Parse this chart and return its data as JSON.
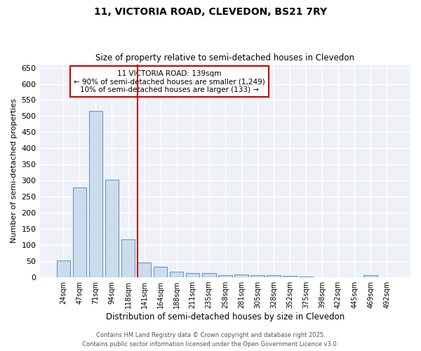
{
  "title_line1": "11, VICTORIA ROAD, CLEVEDON, BS21 7RY",
  "title_line2": "Size of property relative to semi-detached houses in Clevedon",
  "xlabel": "Distribution of semi-detached houses by size in Clevedon",
  "ylabel": "Number of semi-detached properties",
  "bar_labels": [
    "24sqm",
    "47sqm",
    "71sqm",
    "94sqm",
    "118sqm",
    "141sqm",
    "164sqm",
    "188sqm",
    "211sqm",
    "235sqm",
    "258sqm",
    "281sqm",
    "305sqm",
    "328sqm",
    "352sqm",
    "375sqm",
    "398sqm",
    "422sqm",
    "445sqm",
    "469sqm",
    "492sqm"
  ],
  "bar_values": [
    52,
    278,
    516,
    302,
    118,
    46,
    31,
    17,
    12,
    12,
    5,
    7,
    6,
    5,
    3,
    2,
    0,
    0,
    0,
    5,
    0
  ],
  "bar_color": "#ccdcec",
  "bar_edge_color": "#6699cc",
  "vline_x_index": 5,
  "vline_color": "#cc0000",
  "annotation_title": "11 VICTORIA ROAD: 139sqm",
  "annotation_line1": "← 90% of semi-detached houses are smaller (1,249)",
  "annotation_line2": "10% of semi-detached houses are larger (133) →",
  "annotation_box_color": "#cc0000",
  "ylim": [
    0,
    660
  ],
  "yticks": [
    0,
    50,
    100,
    150,
    200,
    250,
    300,
    350,
    400,
    450,
    500,
    550,
    600,
    650
  ],
  "footer_line1": "Contains HM Land Registry data © Crown copyright and database right 2025.",
  "footer_line2": "Contains public sector information licensed under the Open Government Licence v3.0.",
  "bg_color": "#eef2f7"
}
